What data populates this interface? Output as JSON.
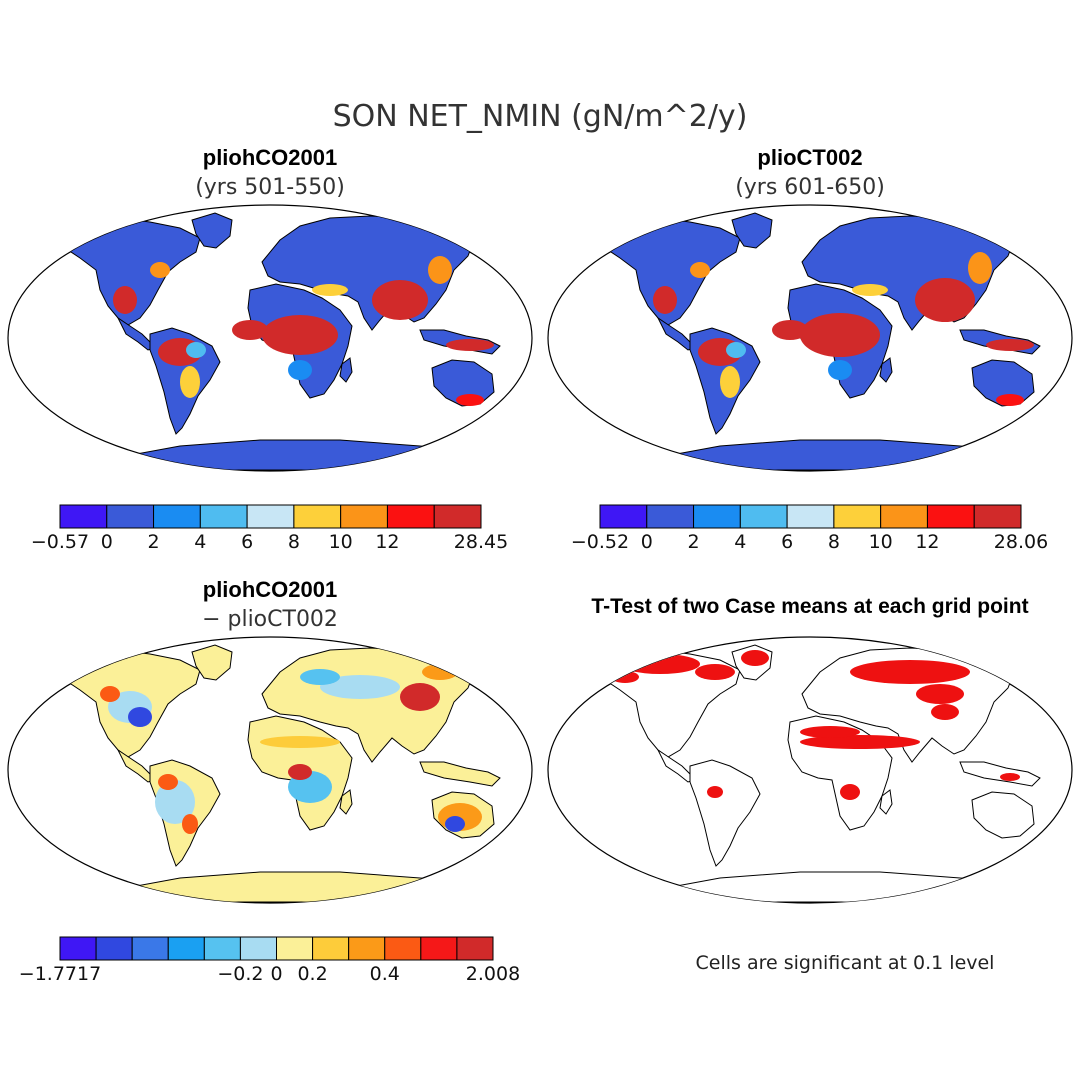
{
  "title": "SON NET_NMIN (gN/m^2/y)",
  "panels": [
    {
      "name": "pliohCO2001",
      "subtitle": "(yrs 501-550)",
      "colorbar": {
        "colors": [
          "#3f17f5",
          "#3a5ad8",
          "#1a8cf2",
          "#4fbcf0",
          "#c8e6f5",
          "#fdd03a",
          "#fb9418",
          "#fb1111",
          "#d12a2a"
        ],
        "tick_labels": [
          "−0.57",
          "0",
          "2",
          "4",
          "6",
          "8",
          "10",
          "12",
          "28.45"
        ]
      }
    },
    {
      "name": "plioCT002",
      "subtitle": "(yrs 601-650)",
      "colorbar": {
        "colors": [
          "#3f17f5",
          "#3a5ad8",
          "#1a8cf2",
          "#4fbcf0",
          "#c8e6f5",
          "#fdd03a",
          "#fb9418",
          "#fb1111",
          "#d12a2a"
        ],
        "tick_labels": [
          "−0.52",
          "0",
          "2",
          "4",
          "6",
          "8",
          "10",
          "12",
          "28.06"
        ]
      }
    },
    {
      "name": "pliohCO2001",
      "subtitle": "− plioCT002",
      "colorbar": {
        "colors": [
          "#3f17f5",
          "#3048e0",
          "#3a78e8",
          "#1aa0f2",
          "#56c2f0",
          "#a8dcf2",
          "#fbf098",
          "#fdcc3a",
          "#fb9a18",
          "#fb5a14",
          "#f51818",
          "#d12a2a"
        ],
        "tick_labels": [
          "−1.7717",
          "−0.2",
          "0",
          "0.2",
          "0.4",
          "2.008"
        ]
      }
    },
    {
      "name": "T-Test of two Case means at each grid point",
      "note": "Cells are significant at 0.1 level",
      "signif_color": "#ee1111"
    }
  ]
}
